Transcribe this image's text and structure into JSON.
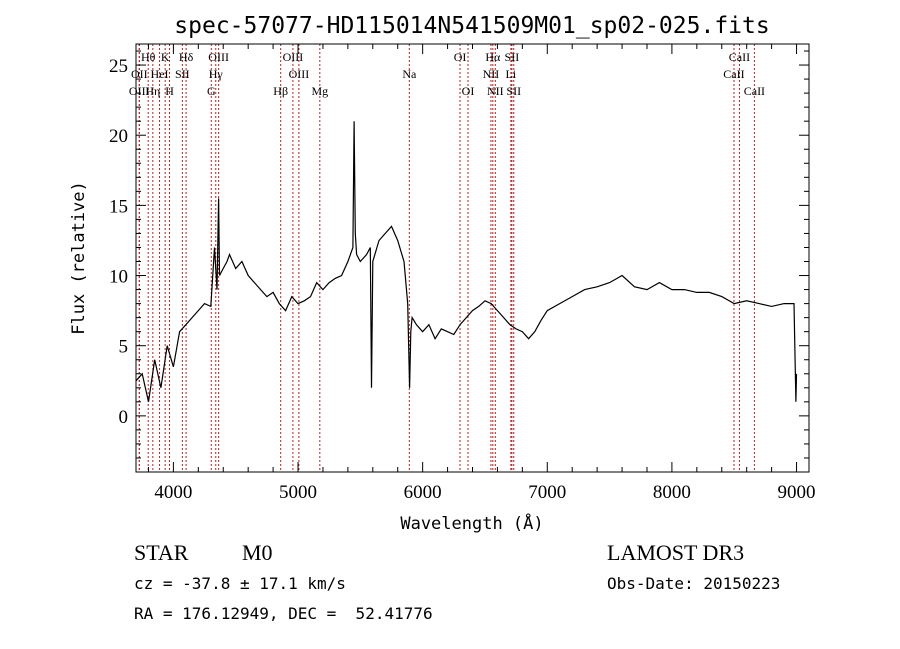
{
  "chart_data": {
    "type": "line",
    "title": "spec-57077-HD115014N541509M01_sp02-025.fits",
    "xlabel": "Wavelength (Å)",
    "ylabel": "Flux (relative)",
    "xlim": [
      3700,
      9100
    ],
    "ylim": [
      -4,
      26.5
    ],
    "x_ticks": [
      4000,
      5000,
      6000,
      7000,
      8000,
      9000
    ],
    "y_ticks": [
      0,
      5,
      10,
      15,
      20,
      25
    ],
    "series": [
      {
        "name": "spectrum",
        "x": [
          3700,
          3750,
          3800,
          3850,
          3900,
          3950,
          4000,
          4050,
          4100,
          4150,
          4200,
          4250,
          4300,
          4330,
          4350,
          4363,
          4370,
          4400,
          4430,
          4450,
          4500,
          4550,
          4600,
          4650,
          4700,
          4750,
          4800,
          4850,
          4900,
          4950,
          5000,
          5050,
          5100,
          5150,
          5200,
          5250,
          5300,
          5350,
          5400,
          5440,
          5450,
          5460,
          5470,
          5500,
          5550,
          5580,
          5590,
          5600,
          5650,
          5700,
          5750,
          5800,
          5850,
          5880,
          5895,
          5905,
          5915,
          5930,
          5950,
          6000,
          6050,
          6100,
          6150,
          6200,
          6250,
          6300,
          6350,
          6400,
          6450,
          6500,
          6550,
          6600,
          6650,
          6700,
          6750,
          6800,
          6850,
          6900,
          6950,
          7000,
          7100,
          7200,
          7300,
          7400,
          7500,
          7600,
          7700,
          7800,
          7900,
          8000,
          8100,
          8200,
          8300,
          8400,
          8500,
          8600,
          8700,
          8800,
          8900,
          8980,
          8995,
          9000
        ],
        "y": [
          2.5,
          3.0,
          1.0,
          4.0,
          2.0,
          5.0,
          3.5,
          6.0,
          6.5,
          7.0,
          7.5,
          8.0,
          7.8,
          12.0,
          9.0,
          15.5,
          10.0,
          10.5,
          11.0,
          11.5,
          10.5,
          11.0,
          10.0,
          9.5,
          9.0,
          8.5,
          8.8,
          8.0,
          7.5,
          8.5,
          8.0,
          8.2,
          8.5,
          9.5,
          9.0,
          9.5,
          9.8,
          10.0,
          11.0,
          12.0,
          21.0,
          13.0,
          11.5,
          11.0,
          11.5,
          12.0,
          2.0,
          11.0,
          12.5,
          13.0,
          13.5,
          12.5,
          11.0,
          8.0,
          2.0,
          6.0,
          7.0,
          6.8,
          6.5,
          6.0,
          6.5,
          5.5,
          6.2,
          6.0,
          5.8,
          6.5,
          7.0,
          7.5,
          7.8,
          8.2,
          8.0,
          7.5,
          7.0,
          6.5,
          6.2,
          6.0,
          5.5,
          6.0,
          6.8,
          7.5,
          8.0,
          8.5,
          9.0,
          9.2,
          9.5,
          10.0,
          9.2,
          9.0,
          9.5,
          9.0,
          9.0,
          8.8,
          8.8,
          8.5,
          8.0,
          8.2,
          8.0,
          7.8,
          8.0,
          8.0,
          1.0,
          3.0
        ]
      }
    ],
    "spectral_lines": [
      {
        "label": "Hθ",
        "x": 3798,
        "row": 0
      },
      {
        "label": "OII",
        "x": 3727,
        "row": 1
      },
      {
        "label": "OIII",
        "x": 3726,
        "row": 2
      },
      {
        "label": "K",
        "x": 3934,
        "row": 0
      },
      {
        "label": "Hη",
        "x": 3835,
        "row": 2
      },
      {
        "label": "HeI",
        "x": 3889,
        "row": 1
      },
      {
        "label": "H",
        "x": 3969,
        "row": 2
      },
      {
        "label": "Hδ",
        "x": 4102,
        "row": 0
      },
      {
        "label": "SII",
        "x": 4072,
        "row": 1
      },
      {
        "label": "OIII",
        "x": 4363,
        "row": 0
      },
      {
        "label": "Hγ",
        "x": 4340,
        "row": 1
      },
      {
        "label": "G",
        "x": 4304,
        "row": 2
      },
      {
        "label": "Hβ",
        "x": 4861,
        "row": 2
      },
      {
        "label": "OIII",
        "x": 4959,
        "row": 0
      },
      {
        "label": "OIII",
        "x": 5007,
        "row": 1
      },
      {
        "label": "Mg",
        "x": 5175,
        "row": 2
      },
      {
        "label": "Na",
        "x": 5893,
        "row": 1
      },
      {
        "label": "OI",
        "x": 6300,
        "row": 0
      },
      {
        "label": "OI",
        "x": 6364,
        "row": 2
      },
      {
        "label": "Hα",
        "x": 6563,
        "row": 0
      },
      {
        "label": "NII",
        "x": 6548,
        "row": 1
      },
      {
        "label": "NII",
        "x": 6583,
        "row": 2
      },
      {
        "label": "SII",
        "x": 6716,
        "row": 0
      },
      {
        "label": "Li",
        "x": 6708,
        "row": 1
      },
      {
        "label": "SII",
        "x": 6731,
        "row": 2
      },
      {
        "label": "CaII",
        "x": 8542,
        "row": 0
      },
      {
        "label": "CaII",
        "x": 8498,
        "row": 1
      },
      {
        "label": "CaII",
        "x": 8662,
        "row": 2
      }
    ]
  },
  "info": {
    "class": "STAR",
    "subclass": "M0",
    "survey": "LAMOST DR3",
    "cz": "cz = -37.8 ± 17.1 km/s",
    "obs_date": "Obs-Date: 20150223",
    "radec": "RA = 176.12949, DEC =  52.41776"
  },
  "colors": {
    "line_marker": "#b22222",
    "spectrum": "#000000",
    "frame": "#000000"
  }
}
